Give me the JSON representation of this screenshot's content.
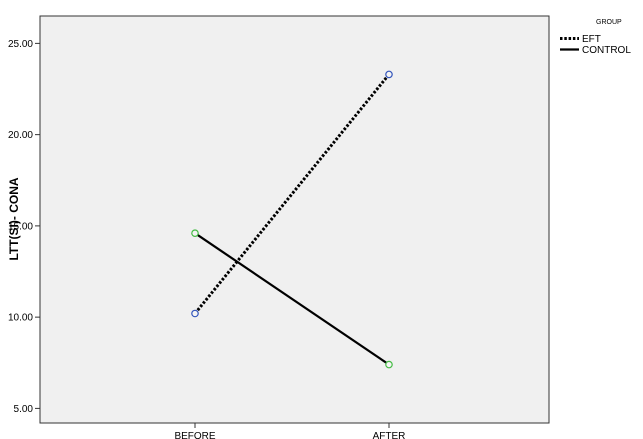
{
  "chart_data": {
    "type": "line",
    "categories": [
      "BEFORE",
      "AFTER"
    ],
    "series": [
      {
        "name": "EFT",
        "values": [
          10.2,
          23.3
        ],
        "line_style": "dotted",
        "color": "#000000",
        "marker_color": "#3355bb"
      },
      {
        "name": "CONTROL",
        "values": [
          14.6,
          7.4
        ],
        "line_style": "solid",
        "color": "#000000",
        "marker_color": "#44bb44"
      }
    ],
    "ylabel": "LTT(SI)- CONA",
    "xlabel": "",
    "ylim": [
      4.2,
      26.5
    ],
    "yticks": [
      5,
      10,
      15,
      20,
      25
    ],
    "ytick_labels": [
      "5.00",
      "10.00",
      "15.00",
      "20.00",
      "25.00"
    ],
    "legend": {
      "title": "GROUP",
      "placement": "top-right outside"
    },
    "plot_background": "#f0f0f0",
    "grid": false
  }
}
